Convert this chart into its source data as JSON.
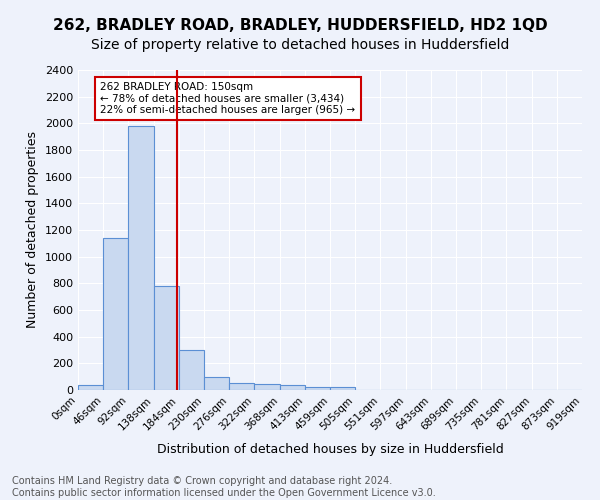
{
  "title1": "262, BRADLEY ROAD, BRADLEY, HUDDERSFIELD, HD2 1QD",
  "title2": "Size of property relative to detached houses in Huddersfield",
  "xlabel": "Distribution of detached houses by size in Huddersfield",
  "ylabel": "Number of detached properties",
  "bin_labels": [
    "0sqm",
    "46sqm",
    "92sqm",
    "138sqm",
    "184sqm",
    "230sqm",
    "276sqm",
    "322sqm",
    "368sqm",
    "413sqm",
    "459sqm",
    "505sqm",
    "551sqm",
    "597sqm",
    "643sqm",
    "689sqm",
    "735sqm",
    "781sqm",
    "827sqm",
    "873sqm",
    "919sqm"
  ],
  "bar_values": [
    40,
    1140,
    1980,
    780,
    300,
    100,
    50,
    45,
    35,
    20,
    20,
    0,
    0,
    0,
    0,
    0,
    0,
    0,
    0,
    0
  ],
  "bar_color": "#c9d9f0",
  "bar_edge_color": "#5b8fd4",
  "vline_x": 3.41,
  "vline_color": "#cc0000",
  "annotation_text": "262 BRADLEY ROAD: 150sqm\n← 78% of detached houses are smaller (3,434)\n22% of semi-detached houses are larger (965) →",
  "annotation_box_color": "white",
  "annotation_box_edge": "#cc0000",
  "ylim": [
    0,
    2400
  ],
  "yticks": [
    0,
    200,
    400,
    600,
    800,
    1000,
    1200,
    1400,
    1600,
    1800,
    2000,
    2200,
    2400
  ],
  "footnote": "Contains HM Land Registry data © Crown copyright and database right 2024.\nContains public sector information licensed under the Open Government Licence v3.0.",
  "background_color": "#eef2fb",
  "grid_color": "white",
  "title1_fontsize": 11,
  "title2_fontsize": 10,
  "xlabel_fontsize": 9,
  "ylabel_fontsize": 9,
  "tick_fontsize": 7.5,
  "footnote_fontsize": 7
}
